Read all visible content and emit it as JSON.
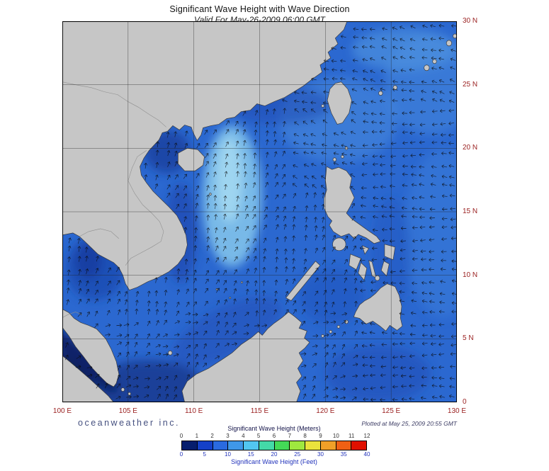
{
  "header": {
    "title": "Significant Wave Height with Wave Direction",
    "subtitle": "Valid For May-26-2009 06:00 GMT"
  },
  "map": {
    "lon_labels": [
      "100 E",
      "105 E",
      "110 E",
      "115 E",
      "120 E",
      "125 E",
      "130 E"
    ],
    "lat_labels": [
      "30 N",
      "25 N",
      "20 N",
      "15 N",
      "10 N",
      "5 N",
      "0"
    ],
    "label_color": "#9b2222",
    "sea_color": "#2b68d0",
    "land_color": "#c6c6c6",
    "coast_color": "#3a3a3a"
  },
  "footer": {
    "logo_text": "oceanweather inc.",
    "plotted_text": "Plotted at May 25, 2009 20:55 GMT"
  },
  "legend": {
    "meters_title": "Significant Wave Height (Meters)",
    "meters_ticks": [
      "0",
      "1",
      "2",
      "3",
      "4",
      "5",
      "6",
      "7",
      "8",
      "9",
      "10",
      "11",
      "12"
    ],
    "feet_title": "Significant Wave Height (Feet)",
    "feet_ticks": [
      "0",
      "5",
      "10",
      "15",
      "20",
      "25",
      "30",
      "35",
      "40"
    ],
    "colors": [
      "#071e6e",
      "#1440c8",
      "#2a6ae0",
      "#3f97e8",
      "#52c6f0",
      "#44d9a8",
      "#44d957",
      "#9fe83f",
      "#eae23c",
      "#f0a028",
      "#f06014",
      "#e01000"
    ]
  }
}
